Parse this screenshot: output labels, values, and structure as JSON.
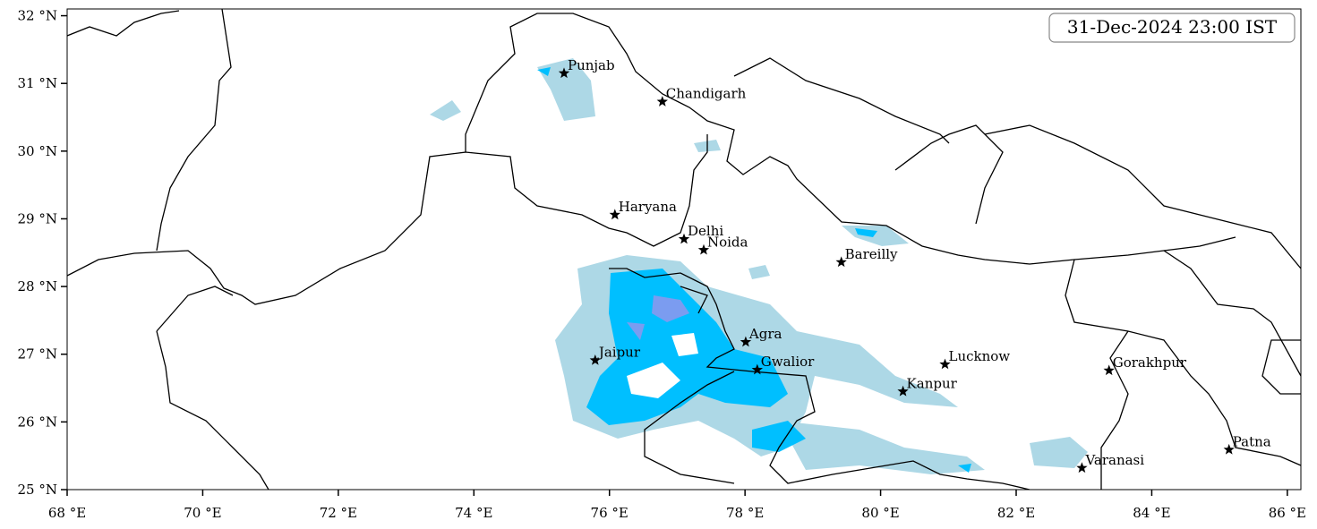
{
  "map": {
    "title": "31-Dec-2024 23:00 IST",
    "xlim": [
      68,
      86.2
    ],
    "ylim": [
      25,
      32.1
    ],
    "xticks": [
      {
        "value": 68,
        "label": "68 °E"
      },
      {
        "value": 70,
        "label": "70 °E"
      },
      {
        "value": 72,
        "label": "72 °E"
      },
      {
        "value": 74,
        "label": "74 °E"
      },
      {
        "value": 76,
        "label": "76 °E"
      },
      {
        "value": 78,
        "label": "78 °E"
      },
      {
        "value": 80,
        "label": "80 °E"
      },
      {
        "value": 82,
        "label": "82 °E"
      },
      {
        "value": 84,
        "label": "84 °E"
      },
      {
        "value": 86,
        "label": "86 °E"
      }
    ],
    "yticks": [
      {
        "value": 25,
        "label": "25 °N"
      },
      {
        "value": 26,
        "label": "26 °N"
      },
      {
        "value": 27,
        "label": "27 °N"
      },
      {
        "value": 28,
        "label": "28 °N"
      },
      {
        "value": 29,
        "label": "29 °N"
      },
      {
        "value": 30,
        "label": "30 °N"
      },
      {
        "value": 31,
        "label": "31 °N"
      },
      {
        "value": 32,
        "label": "32 °N"
      }
    ],
    "cities": [
      {
        "name": "Punjab",
        "lon": 75.33,
        "lat": 31.15
      },
      {
        "name": "Chandigarh",
        "lon": 76.78,
        "lat": 30.73
      },
      {
        "name": "Haryana",
        "lon": 76.08,
        "lat": 29.06
      },
      {
        "name": "Delhi",
        "lon": 77.1,
        "lat": 28.7
      },
      {
        "name": "Noida",
        "lon": 77.39,
        "lat": 28.54
      },
      {
        "name": "Bareilly",
        "lon": 79.42,
        "lat": 28.36
      },
      {
        "name": "Agra",
        "lon": 78.01,
        "lat": 27.18
      },
      {
        "name": "Jaipur",
        "lon": 75.79,
        "lat": 26.91
      },
      {
        "name": "Gwalior",
        "lon": 78.18,
        "lat": 26.77
      },
      {
        "name": "Lucknow",
        "lon": 80.95,
        "lat": 26.85
      },
      {
        "name": "Kanpur",
        "lon": 80.33,
        "lat": 26.45
      },
      {
        "name": "Gorakhpur",
        "lon": 83.37,
        "lat": 26.76
      },
      {
        "name": "Varanasi",
        "lon": 82.97,
        "lat": 25.32
      },
      {
        "name": "Patna",
        "lon": 85.14,
        "lat": 25.59
      }
    ]
  }
}
